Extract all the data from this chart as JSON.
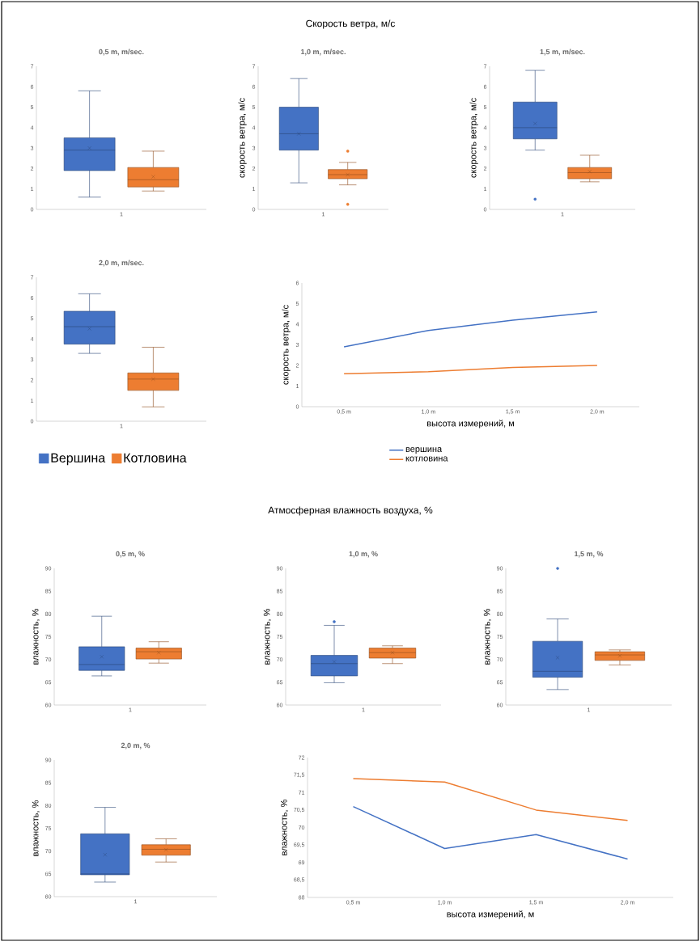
{
  "chart_data": [
    {
      "type": "box",
      "title": "0,5 m, m/sec.",
      "annotations": [
        "Скорость ветра, м/с"
      ],
      "categories": [
        "1"
      ],
      "ylim": [
        0,
        7
      ],
      "yticks": [
        0,
        1,
        2,
        3,
        4,
        5,
        6,
        7
      ],
      "series": [
        {
          "color": "#4472c4",
          "boxes": [
            {
              "low": 0.6,
              "q1": 1.9,
              "median": 2.9,
              "q3": 3.5,
              "high": 5.8,
              "mean": 3.0
            }
          ]
        },
        {
          "color": "#ed7d31",
          "boxes": [
            {
              "low": 0.9,
              "q1": 1.1,
              "median": 1.45,
              "q3": 2.05,
              "high": 2.85,
              "mean": 1.6
            }
          ]
        }
      ]
    },
    {
      "type": "box",
      "title": "1,0 m, m/sec.",
      "ylabel": "скорость ветра, м/с",
      "categories": [
        "1"
      ],
      "ylim": [
        0,
        7
      ],
      "yticks": [
        0,
        1,
        2,
        3,
        4,
        5,
        6,
        7
      ],
      "series": [
        {
          "color": "#4472c4",
          "boxes": [
            {
              "low": 1.3,
              "q1": 2.9,
              "median": 3.7,
              "q3": 5.0,
              "high": 6.4,
              "mean": 3.7
            }
          ]
        },
        {
          "color": "#ed7d31",
          "boxes": [
            {
              "low": 1.2,
              "q1": 1.5,
              "median": 1.7,
              "q3": 1.95,
              "high": 2.3,
              "mean": 1.7,
              "outliers": [
                2.85,
                0.25
              ]
            }
          ]
        }
      ]
    },
    {
      "type": "box",
      "title": "1,5 m, m/sec.",
      "ylabel": "скорость ветра, м/с",
      "categories": [
        "1"
      ],
      "ylim": [
        0,
        7
      ],
      "yticks": [
        0,
        1,
        2,
        3,
        4,
        5,
        6,
        7
      ],
      "series": [
        {
          "color": "#4472c4",
          "boxes": [
            {
              "low": 2.9,
              "q1": 3.45,
              "median": 4.0,
              "q3": 5.25,
              "high": 6.8,
              "mean": 4.2,
              "outliers": [
                0.5
              ]
            }
          ]
        },
        {
          "color": "#ed7d31",
          "boxes": [
            {
              "low": 1.35,
              "q1": 1.5,
              "median": 1.8,
              "q3": 2.05,
              "high": 2.65,
              "mean": 1.85
            }
          ]
        }
      ]
    },
    {
      "type": "box",
      "title": "2,0 m, m/sec.",
      "categories": [
        "1"
      ],
      "ylim": [
        0,
        7
      ],
      "yticks": [
        0,
        1,
        2,
        3,
        4,
        5,
        6,
        7
      ],
      "legend": "bottom",
      "series": [
        {
          "name": "Вершина",
          "color": "#4472c4",
          "boxes": [
            {
              "low": 3.3,
              "q1": 3.75,
              "median": 4.6,
              "q3": 5.35,
              "high": 6.2,
              "mean": 4.5
            }
          ]
        },
        {
          "name": "Котловина",
          "color": "#ed7d31",
          "boxes": [
            {
              "low": 0.7,
              "q1": 1.5,
              "median": 2.05,
              "q3": 2.35,
              "high": 3.6,
              "mean": 2.05
            }
          ]
        }
      ]
    },
    {
      "type": "line",
      "xlabel": "высота измерений, м",
      "ylabel": "скорость ветра, м/с",
      "categories": [
        "0,5 m",
        "1,0 m",
        "1,5 m",
        "2,0 m"
      ],
      "ylim": [
        0,
        6
      ],
      "yticks": [
        0,
        1,
        2,
        3,
        4,
        5,
        6
      ],
      "legend": "bottom",
      "series": [
        {
          "name": "вершина",
          "color": "#4472c4",
          "values": [
            2.9,
            3.7,
            4.2,
            4.6
          ]
        },
        {
          "name": "котловина",
          "color": "#ed7d31",
          "values": [
            1.6,
            1.7,
            1.9,
            2.0
          ]
        }
      ]
    },
    {
      "type": "box",
      "title": "0,5 m, %",
      "annotations": [
        "Атмосферная влажность воздуха, %"
      ],
      "ylabel": "влажность, %",
      "categories": [
        "1"
      ],
      "ylim": [
        60,
        90
      ],
      "yticks": [
        60,
        65,
        70,
        75,
        80,
        85,
        90
      ],
      "series": [
        {
          "color": "#4472c4",
          "boxes": [
            {
              "low": 66.4,
              "q1": 67.6,
              "median": 68.9,
              "q3": 72.8,
              "high": 79.5,
              "mean": 70.6
            }
          ]
        },
        {
          "color": "#ed7d31",
          "boxes": [
            {
              "low": 69.2,
              "q1": 70.1,
              "median": 71.7,
              "q3": 72.5,
              "high": 73.9,
              "mean": 71.5
            }
          ]
        }
      ]
    },
    {
      "type": "box",
      "title": "1,0 m, %",
      "ylabel": "влажность, %",
      "categories": [
        "1"
      ],
      "ylim": [
        60,
        90
      ],
      "yticks": [
        60,
        65,
        70,
        75,
        80,
        85,
        90
      ],
      "series": [
        {
          "color": "#4472c4",
          "boxes": [
            {
              "low": 64.9,
              "q1": 66.4,
              "median": 69.1,
              "q3": 70.9,
              "high": 77.5,
              "mean": 69.5,
              "outliers": [
                78.3
              ]
            }
          ]
        },
        {
          "color": "#ed7d31",
          "boxes": [
            {
              "low": 69.1,
              "q1": 70.3,
              "median": 71.5,
              "q3": 72.5,
              "high": 73.0,
              "mean": 71.5
            }
          ]
        }
      ]
    },
    {
      "type": "box",
      "title": "1,5 m, %",
      "ylabel": "влажность, %",
      "categories": [
        "1"
      ],
      "ylim": [
        60,
        90
      ],
      "yticks": [
        60,
        65,
        70,
        75,
        80,
        85,
        90
      ],
      "series": [
        {
          "color": "#4472c4",
          "boxes": [
            {
              "low": 63.4,
              "q1": 66.1,
              "median": 67.4,
              "q3": 74.0,
              "high": 78.9,
              "mean": 70.4,
              "outliers": [
                90
              ]
            }
          ]
        },
        {
          "color": "#ed7d31",
          "boxes": [
            {
              "low": 68.8,
              "q1": 69.8,
              "median": 71.0,
              "q3": 71.7,
              "high": 72.1,
              "mean": 70.8
            }
          ]
        }
      ]
    },
    {
      "type": "box",
      "title": "2,0 m, %",
      "ylabel": "влажность, %",
      "categories": [
        "1"
      ],
      "ylim": [
        60,
        90
      ],
      "yticks": [
        60,
        65,
        70,
        75,
        80,
        85,
        90
      ],
      "series": [
        {
          "color": "#4472c4",
          "boxes": [
            {
              "low": 63.2,
              "q1": 64.8,
              "median": 65.0,
              "q3": 73.8,
              "high": 79.6,
              "mean": 69.2
            }
          ]
        },
        {
          "color": "#ed7d31",
          "boxes": [
            {
              "low": 67.6,
              "q1": 69.1,
              "median": 70.4,
              "q3": 71.4,
              "high": 72.7,
              "mean": 70.3
            }
          ]
        }
      ]
    },
    {
      "type": "line",
      "xlabel": "высота измерений, м",
      "ylabel": "влажность, %",
      "categories": [
        "0,5 m",
        "1,0 m",
        "1,5 m",
        "2,0 m"
      ],
      "ylim": [
        68,
        72
      ],
      "yticks": [
        68,
        {
          "value": 68.5,
          "label": "68,5"
        },
        69,
        {
          "value": 69.5,
          "label": "69,5"
        },
        70,
        {
          "value": 70.5,
          "label": "70,5"
        },
        71,
        {
          "value": 71.5,
          "label": "71,5"
        },
        72
      ],
      "series": [
        {
          "color": "#4472c4",
          "values": [
            70.6,
            69.4,
            69.8,
            69.1
          ]
        },
        {
          "color": "#ed7d31",
          "values": [
            71.4,
            71.3,
            70.5,
            70.2
          ]
        }
      ]
    }
  ]
}
